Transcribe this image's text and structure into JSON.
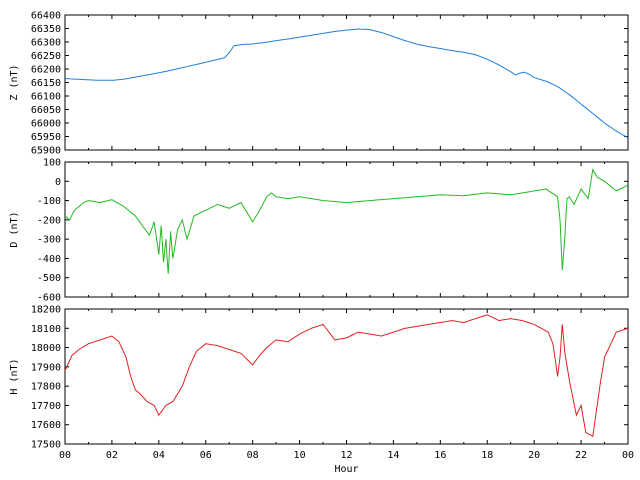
{
  "chart_data": [
    {
      "type": "line",
      "id": "z",
      "title": "",
      "ylabel": "Z (nT)",
      "color": "#1f7fd6",
      "ylim": [
        65900,
        66400
      ],
      "yticks": [
        65900,
        65950,
        66000,
        66050,
        66100,
        66150,
        66200,
        66250,
        66300,
        66350,
        66400
      ],
      "xlim": [
        0,
        24
      ],
      "grid": false,
      "series": [
        {
          "x": [
            0,
            0.5,
            1,
            1.5,
            2,
            2.5,
            3,
            3.5,
            4,
            4.5,
            5,
            5.5,
            6,
            6.5,
            6.8,
            7,
            7.2,
            7.5,
            8,
            8.5,
            9,
            9.5,
            10,
            10.5,
            11,
            11.5,
            12,
            12.5,
            13,
            13.5,
            14,
            14.5,
            15,
            15.5,
            16,
            16.5,
            17,
            17.5,
            18,
            18.5,
            19,
            19.2,
            19.4,
            19.6,
            19.8,
            20,
            20.5,
            21,
            21.5,
            22,
            22.5,
            23,
            23.5,
            24
          ],
          "values": [
            66165,
            66162,
            66160,
            66158,
            66158,
            66162,
            66170,
            66178,
            66186,
            66195,
            66205,
            66215,
            66225,
            66235,
            66242,
            66260,
            66286,
            66290,
            66293,
            66298,
            66305,
            66311,
            66318,
            66325,
            66332,
            66339,
            66344,
            66348,
            66346,
            66335,
            66320,
            66305,
            66292,
            66283,
            66276,
            66268,
            66262,
            66253,
            66236,
            66215,
            66190,
            66178,
            66185,
            66188,
            66180,
            66168,
            66155,
            66135,
            66105,
            66070,
            66035,
            66000,
            65970,
            65945
          ]
        }
      ]
    },
    {
      "type": "line",
      "id": "d",
      "title": "",
      "ylabel": "D (nT)",
      "color": "#22bb22",
      "ylim": [
        -600,
        100
      ],
      "yticks": [
        -600,
        -500,
        -400,
        -300,
        -200,
        -100,
        0,
        100
      ],
      "xlim": [
        0,
        24
      ],
      "grid": false,
      "series": [
        {
          "x": [
            0,
            0.2,
            0.4,
            0.6,
            0.8,
            1,
            1.5,
            2,
            2.5,
            3,
            3.3,
            3.6,
            3.8,
            4,
            4.1,
            4.2,
            4.3,
            4.4,
            4.5,
            4.6,
            4.8,
            5,
            5.2,
            5.5,
            6,
            6.5,
            7,
            7.5,
            8,
            8.3,
            8.6,
            8.8,
            9,
            9.5,
            10,
            11,
            12,
            13,
            14,
            15,
            16,
            17,
            18,
            19,
            20,
            20.5,
            21,
            21.1,
            21.2,
            21.3,
            21.4,
            21.5,
            21.7,
            22,
            22.3,
            22.5,
            22.7,
            23,
            23.5,
            24
          ],
          "values": [
            -180,
            -200,
            -150,
            -130,
            -110,
            -100,
            -110,
            -95,
            -130,
            -180,
            -230,
            -280,
            -210,
            -380,
            -230,
            -420,
            -300,
            -480,
            -260,
            -400,
            -250,
            -200,
            -300,
            -180,
            -150,
            -120,
            -140,
            -110,
            -210,
            -150,
            -80,
            -60,
            -80,
            -90,
            -80,
            -100,
            -110,
            -100,
            -90,
            -80,
            -70,
            -75,
            -60,
            -70,
            -50,
            -40,
            -80,
            -200,
            -460,
            -300,
            -90,
            -80,
            -120,
            -40,
            -90,
            60,
            20,
            0,
            -50,
            -20
          ]
        }
      ]
    },
    {
      "type": "line",
      "id": "h",
      "title": "",
      "ylabel": "H (nT)",
      "xlabel": "Hour",
      "color": "#dd2222",
      "ylim": [
        17500,
        18200
      ],
      "yticks": [
        17500,
        17600,
        17700,
        17800,
        17900,
        18000,
        18100,
        18200
      ],
      "xlim": [
        0,
        24
      ],
      "xticks": [
        "00",
        "02",
        "04",
        "06",
        "08",
        "10",
        "12",
        "14",
        "16",
        "18",
        "20",
        "22",
        "00"
      ],
      "grid": false,
      "series": [
        {
          "x": [
            0,
            0.3,
            0.6,
            1,
            1.5,
            2,
            2.3,
            2.6,
            2.8,
            3,
            3.2,
            3.5,
            3.8,
            4,
            4.3,
            4.6,
            5,
            5.3,
            5.6,
            6,
            6.5,
            7,
            7.5,
            8,
            8.3,
            8.6,
            9,
            9.5,
            10,
            10.5,
            11,
            11.5,
            12,
            12.5,
            13,
            13.5,
            14,
            14.5,
            15,
            15.5,
            16,
            16.5,
            17,
            17.5,
            18,
            18.5,
            19,
            19.5,
            20,
            20.3,
            20.6,
            20.8,
            21,
            21.1,
            21.2,
            21.3,
            21.5,
            21.8,
            22,
            22.2,
            22.5,
            22.8,
            23,
            23.5,
            24
          ],
          "values": [
            17880,
            17960,
            17990,
            18020,
            18040,
            18060,
            18030,
            17950,
            17850,
            17780,
            17760,
            17720,
            17700,
            17650,
            17700,
            17720,
            17800,
            17900,
            17980,
            18020,
            18010,
            17990,
            17970,
            17910,
            17960,
            18000,
            18040,
            18030,
            18070,
            18100,
            18120,
            18040,
            18050,
            18080,
            18070,
            18060,
            18080,
            18100,
            18110,
            18120,
            18130,
            18140,
            18130,
            18150,
            18170,
            18140,
            18150,
            18140,
            18120,
            18100,
            18080,
            18020,
            17850,
            17950,
            18120,
            17980,
            17830,
            17650,
            17700,
            17560,
            17540,
            17800,
            17950,
            18080,
            18100
          ]
        }
      ]
    }
  ]
}
